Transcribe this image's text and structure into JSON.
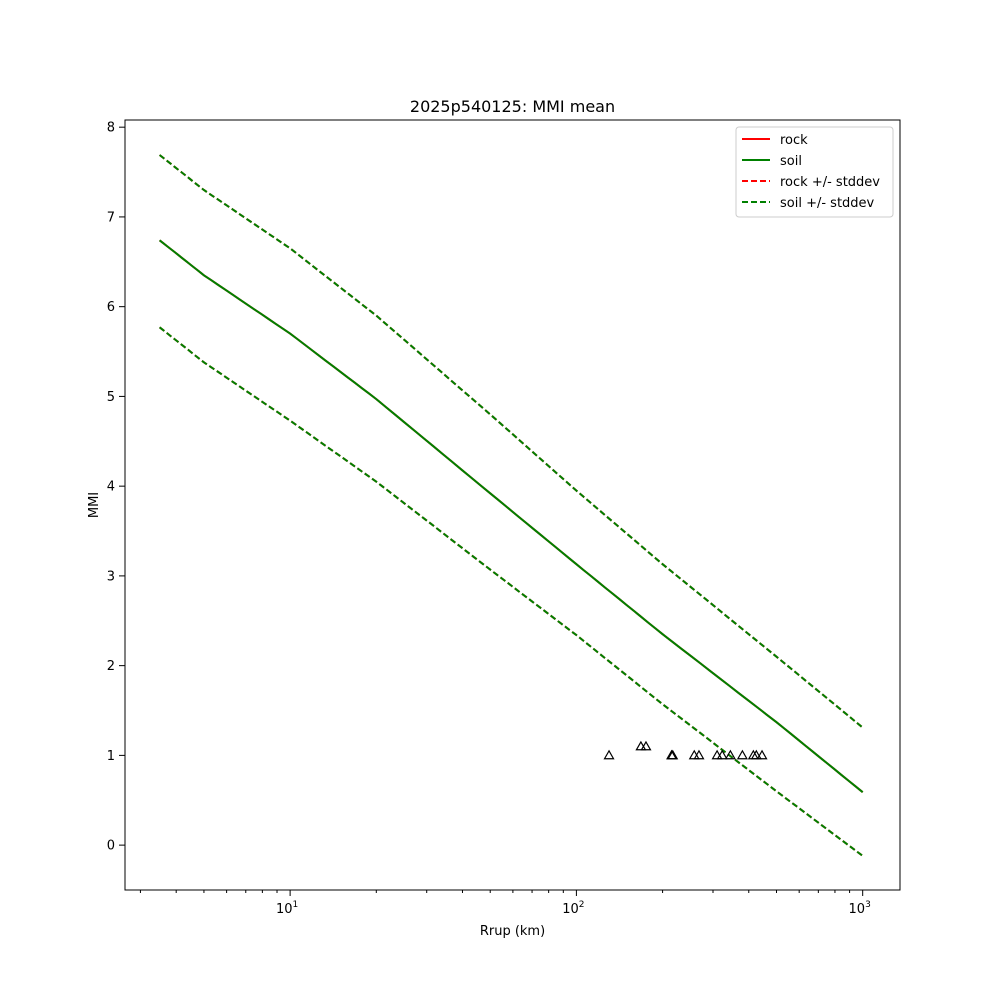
{
  "chart_data": {
    "type": "line",
    "title": "2025p540125: MMI mean",
    "xlabel": "Rrup (km)",
    "ylabel": "MMI",
    "xscale": "log",
    "xlim": [
      2.65,
      1350
    ],
    "ylim": [
      -0.5,
      8.08
    ],
    "x_ticks": [
      {
        "value": 10,
        "base": "10",
        "exp": "1"
      },
      {
        "value": 100,
        "base": "10",
        "exp": "2"
      },
      {
        "value": 1000,
        "base": "10",
        "exp": "3"
      }
    ],
    "y_ticks": [
      "0",
      "1",
      "2",
      "3",
      "4",
      "5",
      "6",
      "7",
      "8"
    ],
    "grid": false,
    "legend_position": "top-right",
    "series": [
      {
        "name": "rock",
        "color": "#ff0000",
        "style": "solid",
        "x": [
          3.5,
          5,
          10,
          20,
          50,
          100,
          200,
          500,
          1000
        ],
        "y": [
          6.74,
          6.35,
          5.7,
          4.97,
          3.92,
          3.13,
          2.35,
          1.37,
          0.59
        ]
      },
      {
        "name": "soil",
        "color": "#008000",
        "style": "solid",
        "x": [
          3.5,
          5,
          10,
          20,
          50,
          100,
          200,
          500,
          1000
        ],
        "y": [
          6.74,
          6.35,
          5.7,
          4.97,
          3.92,
          3.13,
          2.35,
          1.37,
          0.59
        ]
      },
      {
        "name": "rock +/- stddev",
        "color": "#ff0000",
        "style": "dashed",
        "x": [
          3.5,
          5,
          10,
          20,
          50,
          100,
          200,
          500,
          1000
        ],
        "y_upper": [
          7.69,
          7.3,
          6.65,
          5.9,
          4.8,
          3.95,
          3.13,
          2.1,
          1.31
        ],
        "y_lower": [
          5.77,
          5.38,
          4.73,
          4.05,
          3.07,
          2.34,
          1.57,
          0.6,
          -0.12
        ]
      },
      {
        "name": "soil +/- stddev",
        "color": "#008000",
        "style": "dashed",
        "x": [
          3.5,
          5,
          10,
          20,
          50,
          100,
          200,
          500,
          1000
        ],
        "y_upper": [
          7.69,
          7.3,
          6.65,
          5.9,
          4.8,
          3.95,
          3.13,
          2.1,
          1.31
        ],
        "y_lower": [
          5.77,
          5.38,
          4.73,
          4.05,
          3.07,
          2.34,
          1.57,
          0.6,
          -0.12
        ]
      }
    ],
    "observations": {
      "marker": "triangle",
      "color": "#000000",
      "points": [
        {
          "x": 130,
          "y": 1.0
        },
        {
          "x": 168,
          "y": 1.1
        },
        {
          "x": 175,
          "y": 1.1
        },
        {
          "x": 215,
          "y": 1.0
        },
        {
          "x": 217,
          "y": 1.0
        },
        {
          "x": 258,
          "y": 1.0
        },
        {
          "x": 268,
          "y": 1.0
        },
        {
          "x": 310,
          "y": 1.0
        },
        {
          "x": 323,
          "y": 1.0
        },
        {
          "x": 345,
          "y": 1.0
        },
        {
          "x": 380,
          "y": 1.0
        },
        {
          "x": 415,
          "y": 1.0
        },
        {
          "x": 425,
          "y": 1.0
        },
        {
          "x": 445,
          "y": 1.0
        }
      ]
    }
  }
}
